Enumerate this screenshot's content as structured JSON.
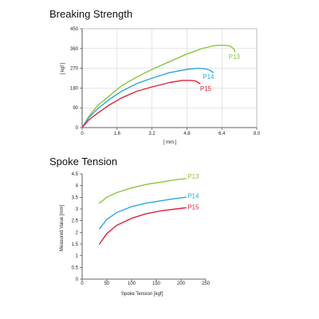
{
  "chart_data": [
    {
      "type": "line",
      "title": "Breaking Strength",
      "xlabel": "[ mm ]",
      "ylabel": "[ kgf ]",
      "xlim": [
        0,
        8.0
      ],
      "ylim": [
        0,
        450
      ],
      "xticks": [
        "0",
        "1.6",
        "3.2",
        "4.8",
        "6.4",
        "8.0"
      ],
      "yticks": [
        "0",
        "90",
        "180",
        "270",
        "360",
        "450"
      ],
      "grid": true,
      "series": [
        {
          "name": "P13",
          "color": "#8cc63f",
          "x": [
            0,
            0.3,
            0.7,
            1.2,
            1.8,
            2.5,
            3.2,
            4.0,
            4.8,
            5.5,
            6.0,
            6.3,
            6.6,
            6.8,
            6.95,
            7.0
          ],
          "y": [
            0,
            50,
            100,
            140,
            190,
            230,
            265,
            300,
            335,
            360,
            372,
            375,
            374,
            370,
            358,
            345
          ]
        },
        {
          "name": "P14",
          "color": "#29a8df",
          "x": [
            0,
            0.3,
            0.7,
            1.2,
            1.8,
            2.5,
            3.2,
            4.0,
            4.8,
            5.3,
            5.6,
            5.8,
            5.95,
            6.0
          ],
          "y": [
            0,
            45,
            85,
            125,
            165,
            200,
            225,
            250,
            265,
            270,
            268,
            263,
            255,
            250
          ]
        },
        {
          "name": "P15",
          "color": "#e0243a",
          "x": [
            0,
            0.3,
            0.7,
            1.2,
            1.8,
            2.5,
            3.2,
            4.0,
            4.6,
            5.0,
            5.2,
            5.4
          ],
          "y": [
            0,
            35,
            65,
            100,
            135,
            165,
            185,
            205,
            215,
            215,
            212,
            200
          ]
        }
      ]
    },
    {
      "type": "line",
      "title": "Spoke Tension",
      "xlabel": "Spoke Tension [kgf]",
      "ylabel": "Measured Value [mm]",
      "xlim": [
        0,
        250
      ],
      "ylim": [
        0,
        4.5
      ],
      "xticks": [
        "0",
        "50",
        "100",
        "150",
        "200",
        "250"
      ],
      "yticks": [
        "0",
        "0.5",
        "1",
        "1.5",
        "2",
        "2.5",
        "3",
        "3.5",
        "4",
        "4.5"
      ],
      "grid": false,
      "series": [
        {
          "name": "P13",
          "color": "#8cc63f",
          "x": [
            35,
            50,
            70,
            100,
            130,
            160,
            190,
            210
          ],
          "y": [
            3.25,
            3.5,
            3.7,
            3.9,
            4.05,
            4.15,
            4.25,
            4.3
          ]
        },
        {
          "name": "P14",
          "color": "#29a8df",
          "x": [
            35,
            50,
            70,
            100,
            130,
            160,
            190,
            210
          ],
          "y": [
            2.15,
            2.55,
            2.85,
            3.1,
            3.25,
            3.35,
            3.45,
            3.5
          ]
        },
        {
          "name": "P15",
          "color": "#e0243a",
          "x": [
            35,
            50,
            70,
            100,
            130,
            160,
            190,
            210
          ],
          "y": [
            1.5,
            1.95,
            2.3,
            2.6,
            2.8,
            2.92,
            3.0,
            3.05
          ]
        }
      ]
    }
  ]
}
